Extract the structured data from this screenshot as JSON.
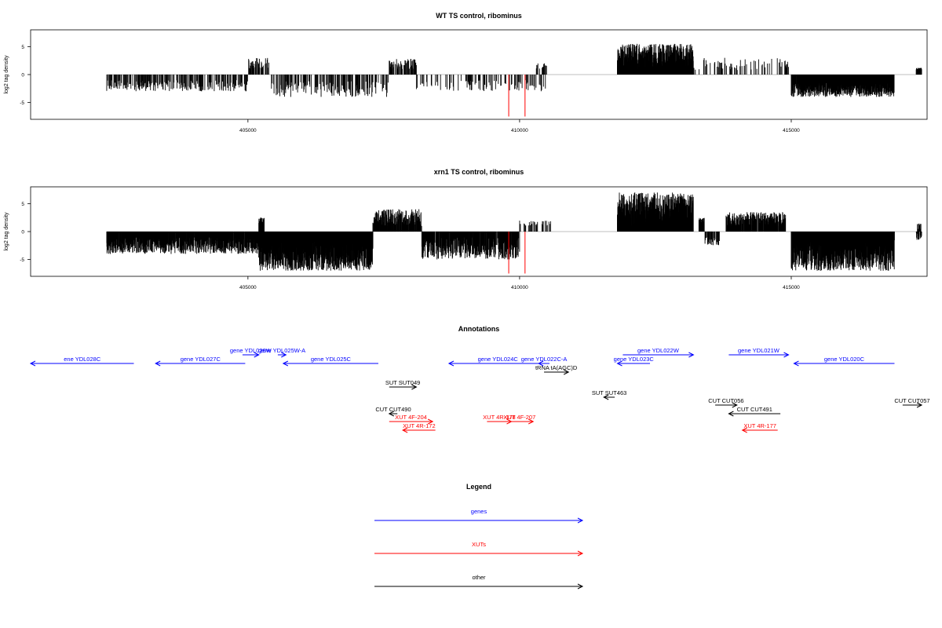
{
  "colors": {
    "gene": "#0000ff",
    "xut": "#ff0000",
    "other": "#000000",
    "baseline": "#aaaaaa",
    "highlight": "#ff0000"
  },
  "chart_data": [
    {
      "type": "bar",
      "title": "WT TS control, ribominus",
      "ylabel": "log2 tag density",
      "xlim": [
        401000,
        417500
      ],
      "ylim": [
        -8,
        8
      ],
      "xticks": [
        405000,
        410000,
        415000
      ],
      "yticks": [
        -5,
        0,
        5
      ],
      "xtick_labels": [
        "405000",
        "410000",
        "415000"
      ],
      "ytick_labels": [
        "-5",
        "0",
        "5"
      ],
      "highlight_bars": [
        {
          "x": 409800,
          "y": -7.5
        },
        {
          "x": 410100,
          "y": -7.5
        }
      ],
      "segments": [
        {
          "x0": 402400,
          "x1": 405000,
          "min": -3.0,
          "max": -1.0,
          "density": 0.45,
          "seed": 3
        },
        {
          "x0": 405000,
          "x1": 405400,
          "min": 1.0,
          "max": 3.0,
          "density": 0.5,
          "seed": 5
        },
        {
          "x0": 405400,
          "x1": 407600,
          "min": -4.0,
          "max": -1.2,
          "density": 0.45,
          "seed": 7
        },
        {
          "x0": 407600,
          "x1": 408100,
          "min": 1.0,
          "max": 2.8,
          "density": 0.6,
          "seed": 9
        },
        {
          "x0": 408100,
          "x1": 410500,
          "min": -3.0,
          "max": -1.0,
          "density": 0.35,
          "seed": 11
        },
        {
          "x0": 410300,
          "x1": 410500,
          "min": 1.0,
          "max": 2.0,
          "density": 0.4,
          "seed": 13
        },
        {
          "x0": 411800,
          "x1": 413200,
          "min": 1.0,
          "max": 5.5,
          "density": 1.0,
          "seed": 17
        },
        {
          "x0": 413200,
          "x1": 414950,
          "min": 0.8,
          "max": 3.0,
          "density": 0.35,
          "seed": 19
        },
        {
          "x0": 415000,
          "x1": 416900,
          "min": -4.0,
          "max": -1.5,
          "density": 0.9,
          "seed": 23
        },
        {
          "x0": 417300,
          "x1": 417400,
          "min": 0.8,
          "max": 1.2,
          "density": 1.0,
          "seed": 29
        }
      ]
    },
    {
      "type": "bar",
      "title": "xrn1 TS control, ribominus",
      "ylabel": "log2 tag density",
      "xlim": [
        401000,
        417500
      ],
      "ylim": [
        -8,
        8
      ],
      "xticks": [
        405000,
        410000,
        415000
      ],
      "yticks": [
        -5,
        0,
        5
      ],
      "xtick_labels": [
        "405000",
        "410000",
        "415000"
      ],
      "ytick_labels": [
        "-5",
        "0",
        "5"
      ],
      "highlight_bars": [
        {
          "x": 409800,
          "y": -7.5
        },
        {
          "x": 410100,
          "y": -7.5
        }
      ],
      "segments": [
        {
          "x0": 402400,
          "x1": 405200,
          "min": -4.0,
          "max": -1.0,
          "density": 0.85,
          "seed": 31
        },
        {
          "x0": 405200,
          "x1": 405300,
          "min": 1.5,
          "max": 2.5,
          "density": 1.0,
          "seed": 33
        },
        {
          "x0": 405200,
          "x1": 407300,
          "min": -7.0,
          "max": -1.5,
          "density": 1.0,
          "seed": 37
        },
        {
          "x0": 407300,
          "x1": 408200,
          "min": 1.0,
          "max": 4.0,
          "density": 0.8,
          "seed": 41
        },
        {
          "x0": 408200,
          "x1": 410000,
          "min": -5.0,
          "max": -1.0,
          "density": 0.8,
          "seed": 43
        },
        {
          "x0": 410000,
          "x1": 410600,
          "min": 1.0,
          "max": 2.0,
          "density": 0.4,
          "seed": 45
        },
        {
          "x0": 411800,
          "x1": 413200,
          "min": 1.0,
          "max": 7.0,
          "density": 1.0,
          "seed": 47
        },
        {
          "x0": 413300,
          "x1": 413400,
          "min": 1.0,
          "max": 2.5,
          "density": 1.0,
          "seed": 49
        },
        {
          "x0": 413400,
          "x1": 413700,
          "min": -2.5,
          "max": -1.0,
          "density": 0.5,
          "seed": 50
        },
        {
          "x0": 413800,
          "x1": 414900,
          "min": 1.0,
          "max": 3.5,
          "density": 0.8,
          "seed": 51
        },
        {
          "x0": 415000,
          "x1": 416900,
          "min": -7.0,
          "max": -1.5,
          "density": 1.0,
          "seed": 53
        },
        {
          "x0": 417300,
          "x1": 417400,
          "min": -1.5,
          "max": 1.5,
          "density": 1.0,
          "seed": 55
        }
      ]
    }
  ],
  "annotations": {
    "title": "Annotations",
    "features": [
      {
        "label": "ene YDL028C",
        "kind": "gene",
        "start": 401000,
        "end": 402900,
        "strand": "-",
        "row": 1
      },
      {
        "label": "gene YDL026W",
        "kind": "gene",
        "start": 404900,
        "end": 405200,
        "strand": "+",
        "row": 0
      },
      {
        "label": "gene YDL027C",
        "kind": "gene",
        "start": 403300,
        "end": 404950,
        "strand": "-",
        "row": 1
      },
      {
        "label": "gene YDL025W-A",
        "kind": "gene",
        "start": 405550,
        "end": 405700,
        "strand": "+",
        "row": 0
      },
      {
        "label": "gene YDL025C",
        "kind": "gene",
        "start": 405650,
        "end": 407400,
        "strand": "-",
        "row": 1
      },
      {
        "label": "gene YDL024C",
        "kind": "gene",
        "start": 408700,
        "end": 410500,
        "strand": "-",
        "row": 1
      },
      {
        "label": "gene YDL022C-A",
        "kind": "gene",
        "start": 410350,
        "end": 410550,
        "strand": "-",
        "row": 1
      },
      {
        "label": "gene YDL022W",
        "kind": "gene",
        "start": 411900,
        "end": 413200,
        "strand": "+",
        "row": 0
      },
      {
        "label": "gene YDL023C",
        "kind": "gene",
        "start": 411800,
        "end": 412400,
        "strand": "-",
        "row": 1
      },
      {
        "label": "gene YDL021W",
        "kind": "gene",
        "start": 413850,
        "end": 414950,
        "strand": "+",
        "row": 0
      },
      {
        "label": "gene YDL020C",
        "kind": "gene",
        "start": 415050,
        "end": 416900,
        "strand": "-",
        "row": 1
      },
      {
        "label": "tRNA tA(AGC)D",
        "kind": "other",
        "start": 410450,
        "end": 410900,
        "strand": "+",
        "row": 2
      },
      {
        "label": "SUT SUT049",
        "kind": "other",
        "start": 407600,
        "end": 408100,
        "strand": "+",
        "row": 3
      },
      {
        "label": "SUT SUT463",
        "kind": "other",
        "start": 411550,
        "end": 411750,
        "strand": "-",
        "row": 4
      },
      {
        "label": "CUT CUT490",
        "kind": "other",
        "start": 407600,
        "end": 407750,
        "strand": "-",
        "row": 6
      },
      {
        "label": "XUT 4F-204",
        "kind": "xut",
        "start": 407600,
        "end": 408400,
        "strand": "+",
        "row": 7
      },
      {
        "label": "XUT 4R-172",
        "kind": "xut",
        "start": 407850,
        "end": 408450,
        "strand": "-",
        "row": 8
      },
      {
        "label": "XUT 4R-178",
        "kind": "xut",
        "start": 409400,
        "end": 409850,
        "strand": "+",
        "row": 7
      },
      {
        "label": "XUT 4F-207",
        "kind": "xut",
        "start": 409750,
        "end": 410250,
        "strand": "+",
        "row": 7
      },
      {
        "label": "CUT CUT056",
        "kind": "other",
        "start": 413600,
        "end": 414000,
        "strand": "+",
        "row": 5
      },
      {
        "label": "CUT CUT491",
        "kind": "other",
        "start": 413850,
        "end": 414800,
        "strand": "-",
        "row": 6
      },
      {
        "label": "XUT 4R-177",
        "kind": "xut",
        "start": 414100,
        "end": 414750,
        "strand": "-",
        "row": 8
      },
      {
        "label": "CUT CUT057",
        "kind": "other",
        "start": 417050,
        "end": 417400,
        "strand": "+",
        "row": 5
      }
    ]
  },
  "legend": {
    "title": "Legend",
    "items": [
      {
        "label": "genes",
        "kind": "gene"
      },
      {
        "label": "XUTs",
        "kind": "xut"
      },
      {
        "label": "other",
        "kind": "other"
      }
    ]
  }
}
